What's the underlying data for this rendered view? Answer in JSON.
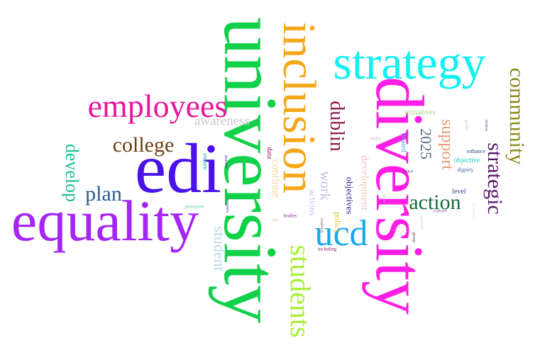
{
  "words": {
    "university": "university",
    "diversity": "diversity",
    "equality": "equality",
    "edi": "edi",
    "inclusion": "inclusion",
    "strategy": "strategy",
    "employees": "employees",
    "ucd": "ucd",
    "students": "students",
    "community": "community",
    "strategic": "strategic",
    "action": "action",
    "college": "college",
    "plan": "plan",
    "develop": "develop",
    "dublin": "dublin",
    "support": "support",
    "y2025": "2025",
    "student": "student",
    "awareness": "awareness",
    "work": "work",
    "continue": "continue",
    "development": "development",
    "objectives": "objectives",
    "actions": "actions",
    "policy": "policy",
    "initiatives": "initiatives",
    "objective": "objective",
    "enhance": "enhance",
    "level": "level",
    "dignity": "dignity",
    "culture": "culture",
    "place": "place",
    "related": "related",
    "data": "data",
    "ensure": "ensure",
    "process": "process",
    "processes": "processes",
    "supports": "supports",
    "bodies": "bodies",
    "including": "including",
    "new": "new",
    "establish": "establish",
    "group": "group",
    "make": "make",
    "gender": "gender",
    "review": "review",
    "grounds": "grounds",
    "face": "face",
    "inclusive": "inclusive"
  },
  "colors": {
    "university": "#11d14a",
    "diversity": "#ff1ee6",
    "equality": "#a425f5",
    "edi": "#4a12e8",
    "inclusion": "#f5a71a",
    "strategy": "#14f0f0",
    "employees": "#e8169c",
    "ucd": "#1ba9e8",
    "students": "#a8ef3a",
    "community": "#8b8a1a",
    "strategic": "#5a1a6a",
    "action": "#1a6b3a",
    "college": "#6a3f12",
    "plan": "#2a5b8f",
    "develop": "#1abf9a",
    "dublin": "#8a1a4a",
    "support": "#e89a7a",
    "y2025": "#5a6a8a",
    "student": "#b8d8f0",
    "awareness": "#c8c8c8"
  }
}
